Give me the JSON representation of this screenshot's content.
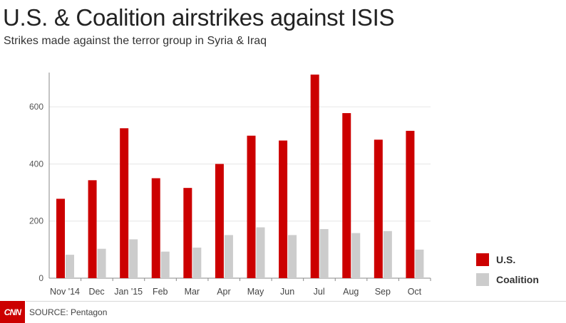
{
  "header": {
    "title": "U.S. & Coalition airstrikes against ISIS",
    "subtitle": "Strikes made against the terror group in Syria & Iraq"
  },
  "footer": {
    "logo_text": "CNN",
    "source": "SOURCE: Pentagon"
  },
  "colors": {
    "us": "#cc0000",
    "coalition": "#cccccc",
    "grid": "#e6e6e6",
    "axis": "#888888"
  },
  "chart_data": {
    "type": "bar",
    "title": "U.S. & Coalition airstrikes against ISIS",
    "subtitle": "Strikes made against the terror group in Syria & Iraq",
    "xlabel": "",
    "ylabel": "",
    "ylim": [
      0,
      720
    ],
    "yticks": [
      0,
      200,
      400,
      600
    ],
    "grid": true,
    "legend_position": "bottom-right",
    "categories": [
      "Nov '14",
      "Dec",
      "Jan '15",
      "Feb",
      "Mar",
      "Apr",
      "May",
      "Jun",
      "Jul",
      "Aug",
      "Sep",
      "Oct"
    ],
    "series": [
      {
        "name": "U.S.",
        "color": "#cc0000",
        "values": [
          278,
          343,
          525,
          350,
          316,
          400,
          499,
          482,
          713,
          578,
          485,
          516
        ]
      },
      {
        "name": "Coalition",
        "color": "#cccccc",
        "values": [
          82,
          103,
          136,
          93,
          107,
          151,
          178,
          151,
          172,
          158,
          165,
          100
        ]
      }
    ]
  }
}
